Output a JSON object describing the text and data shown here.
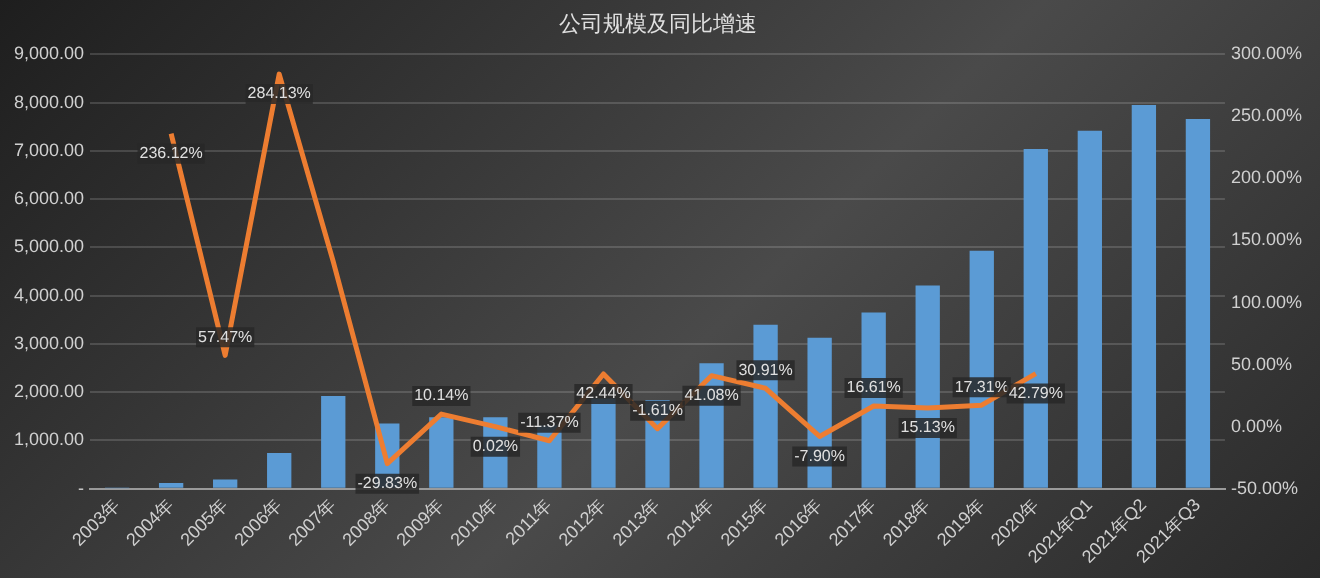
{
  "chart_data": {
    "type": "bar",
    "title": "公司规模及同比增速",
    "categories": [
      "2003年",
      "2004年",
      "2005年",
      "2006年",
      "2007年",
      "2008年",
      "2009年",
      "2010年",
      "2011年",
      "2012年",
      "2013年",
      "2014年",
      "2015年",
      "2016年",
      "2017年",
      "2018年",
      "2019年",
      "2020年",
      "2021年Q1",
      "2021年Q2",
      "2021年Q3"
    ],
    "series": [
      {
        "color": "#5b9bd5",
        "values": [
          10,
          120,
          190,
          740,
          1920,
          1350,
          1480,
          1480,
          1310,
          1870,
          1840,
          2600,
          3400,
          3130,
          3650,
          4210,
          4930,
          7040,
          7420,
          7950,
          7660
        ]
      },
      {
        "type": "line",
        "axis": "y2",
        "color": "#ed7d31",
        "values": [
          null,
          236.12,
          57.47,
          284.13,
          133,
          -29.83,
          10.14,
          0.02,
          -11.37,
          42.44,
          -1.61,
          41.08,
          30.91,
          -7.9,
          16.61,
          15.13,
          17.31,
          42.79,
          null,
          null,
          null
        ],
        "value_labels": [
          null,
          "236.12%",
          "57.47%",
          "284.13%",
          null,
          "-29.83%",
          "10.14%",
          "0.02%",
          "-11.37%",
          "42.44%",
          "-1.61%",
          "41.08%",
          "30.91%",
          "-7.90%",
          "16.61%",
          "15.13%",
          "17.31%",
          "42.79%",
          null,
          null,
          null
        ]
      }
    ],
    "ylim": [
      0,
      9000
    ],
    "yticks": [
      {
        "value": 0,
        "label": "-"
      },
      {
        "value": 1000,
        "label": "1,000.00"
      },
      {
        "value": 2000,
        "label": "2,000.00"
      },
      {
        "value": 3000,
        "label": "3,000.00"
      },
      {
        "value": 4000,
        "label": "4,000.00"
      },
      {
        "value": 5000,
        "label": "5,000.00"
      },
      {
        "value": 6000,
        "label": "6,000.00"
      },
      {
        "value": 7000,
        "label": "7,000.00"
      },
      {
        "value": 8000,
        "label": "8,000.00"
      },
      {
        "value": 9000,
        "label": "9,000.00"
      }
    ],
    "y2lim": [
      -50,
      300
    ],
    "y2ticks": [
      {
        "value": -50,
        "label": "-50.00%"
      },
      {
        "value": 0,
        "label": "0.00%"
      },
      {
        "value": 50,
        "label": "50.00%"
      },
      {
        "value": 100,
        "label": "100.00%"
      },
      {
        "value": 150,
        "label": "150.00%"
      },
      {
        "value": 200,
        "label": "200.00%"
      },
      {
        "value": 250,
        "label": "250.00%"
      },
      {
        "value": 300,
        "label": "300.00%"
      }
    ],
    "grid": "y",
    "legend": false,
    "marker": "none",
    "line_style": "solid"
  }
}
